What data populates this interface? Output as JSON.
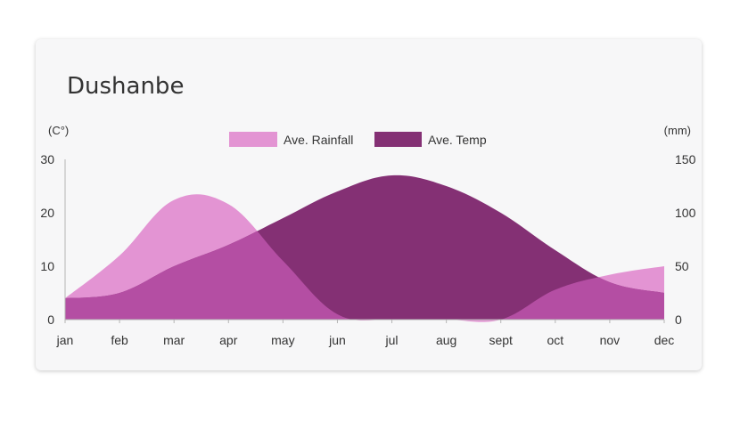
{
  "card": {
    "title": "Dushanbe"
  },
  "chart_data": {
    "type": "area",
    "title": "Dushanbe",
    "categories": [
      "jan",
      "feb",
      "mar",
      "apr",
      "may",
      "jun",
      "jul",
      "aug",
      "sept",
      "oct",
      "nov",
      "dec"
    ],
    "left_axis": {
      "unit": "(C°)",
      "ticks": [
        "0",
        "10",
        "20",
        "30"
      ],
      "range": [
        0,
        30
      ]
    },
    "right_axis": {
      "unit": "(mm)",
      "ticks": [
        "0",
        "50",
        "100",
        "150"
      ],
      "range": [
        0,
        150
      ]
    },
    "legend_position": "top-center",
    "grid": false,
    "series": [
      {
        "name": "Ave. Rainfall",
        "axis": "right",
        "color": "#e394d3",
        "values": [
          20,
          60,
          112,
          108,
          55,
          5,
          0,
          0,
          0,
          28,
          42,
          50
        ]
      },
      {
        "name": "Ave. Temp",
        "axis": "left",
        "color": "#843074",
        "values": [
          4,
          5,
          10,
          14,
          19,
          24,
          27,
          25,
          20,
          13,
          7,
          5
        ]
      }
    ],
    "overlap_color": "#b44ea3"
  }
}
